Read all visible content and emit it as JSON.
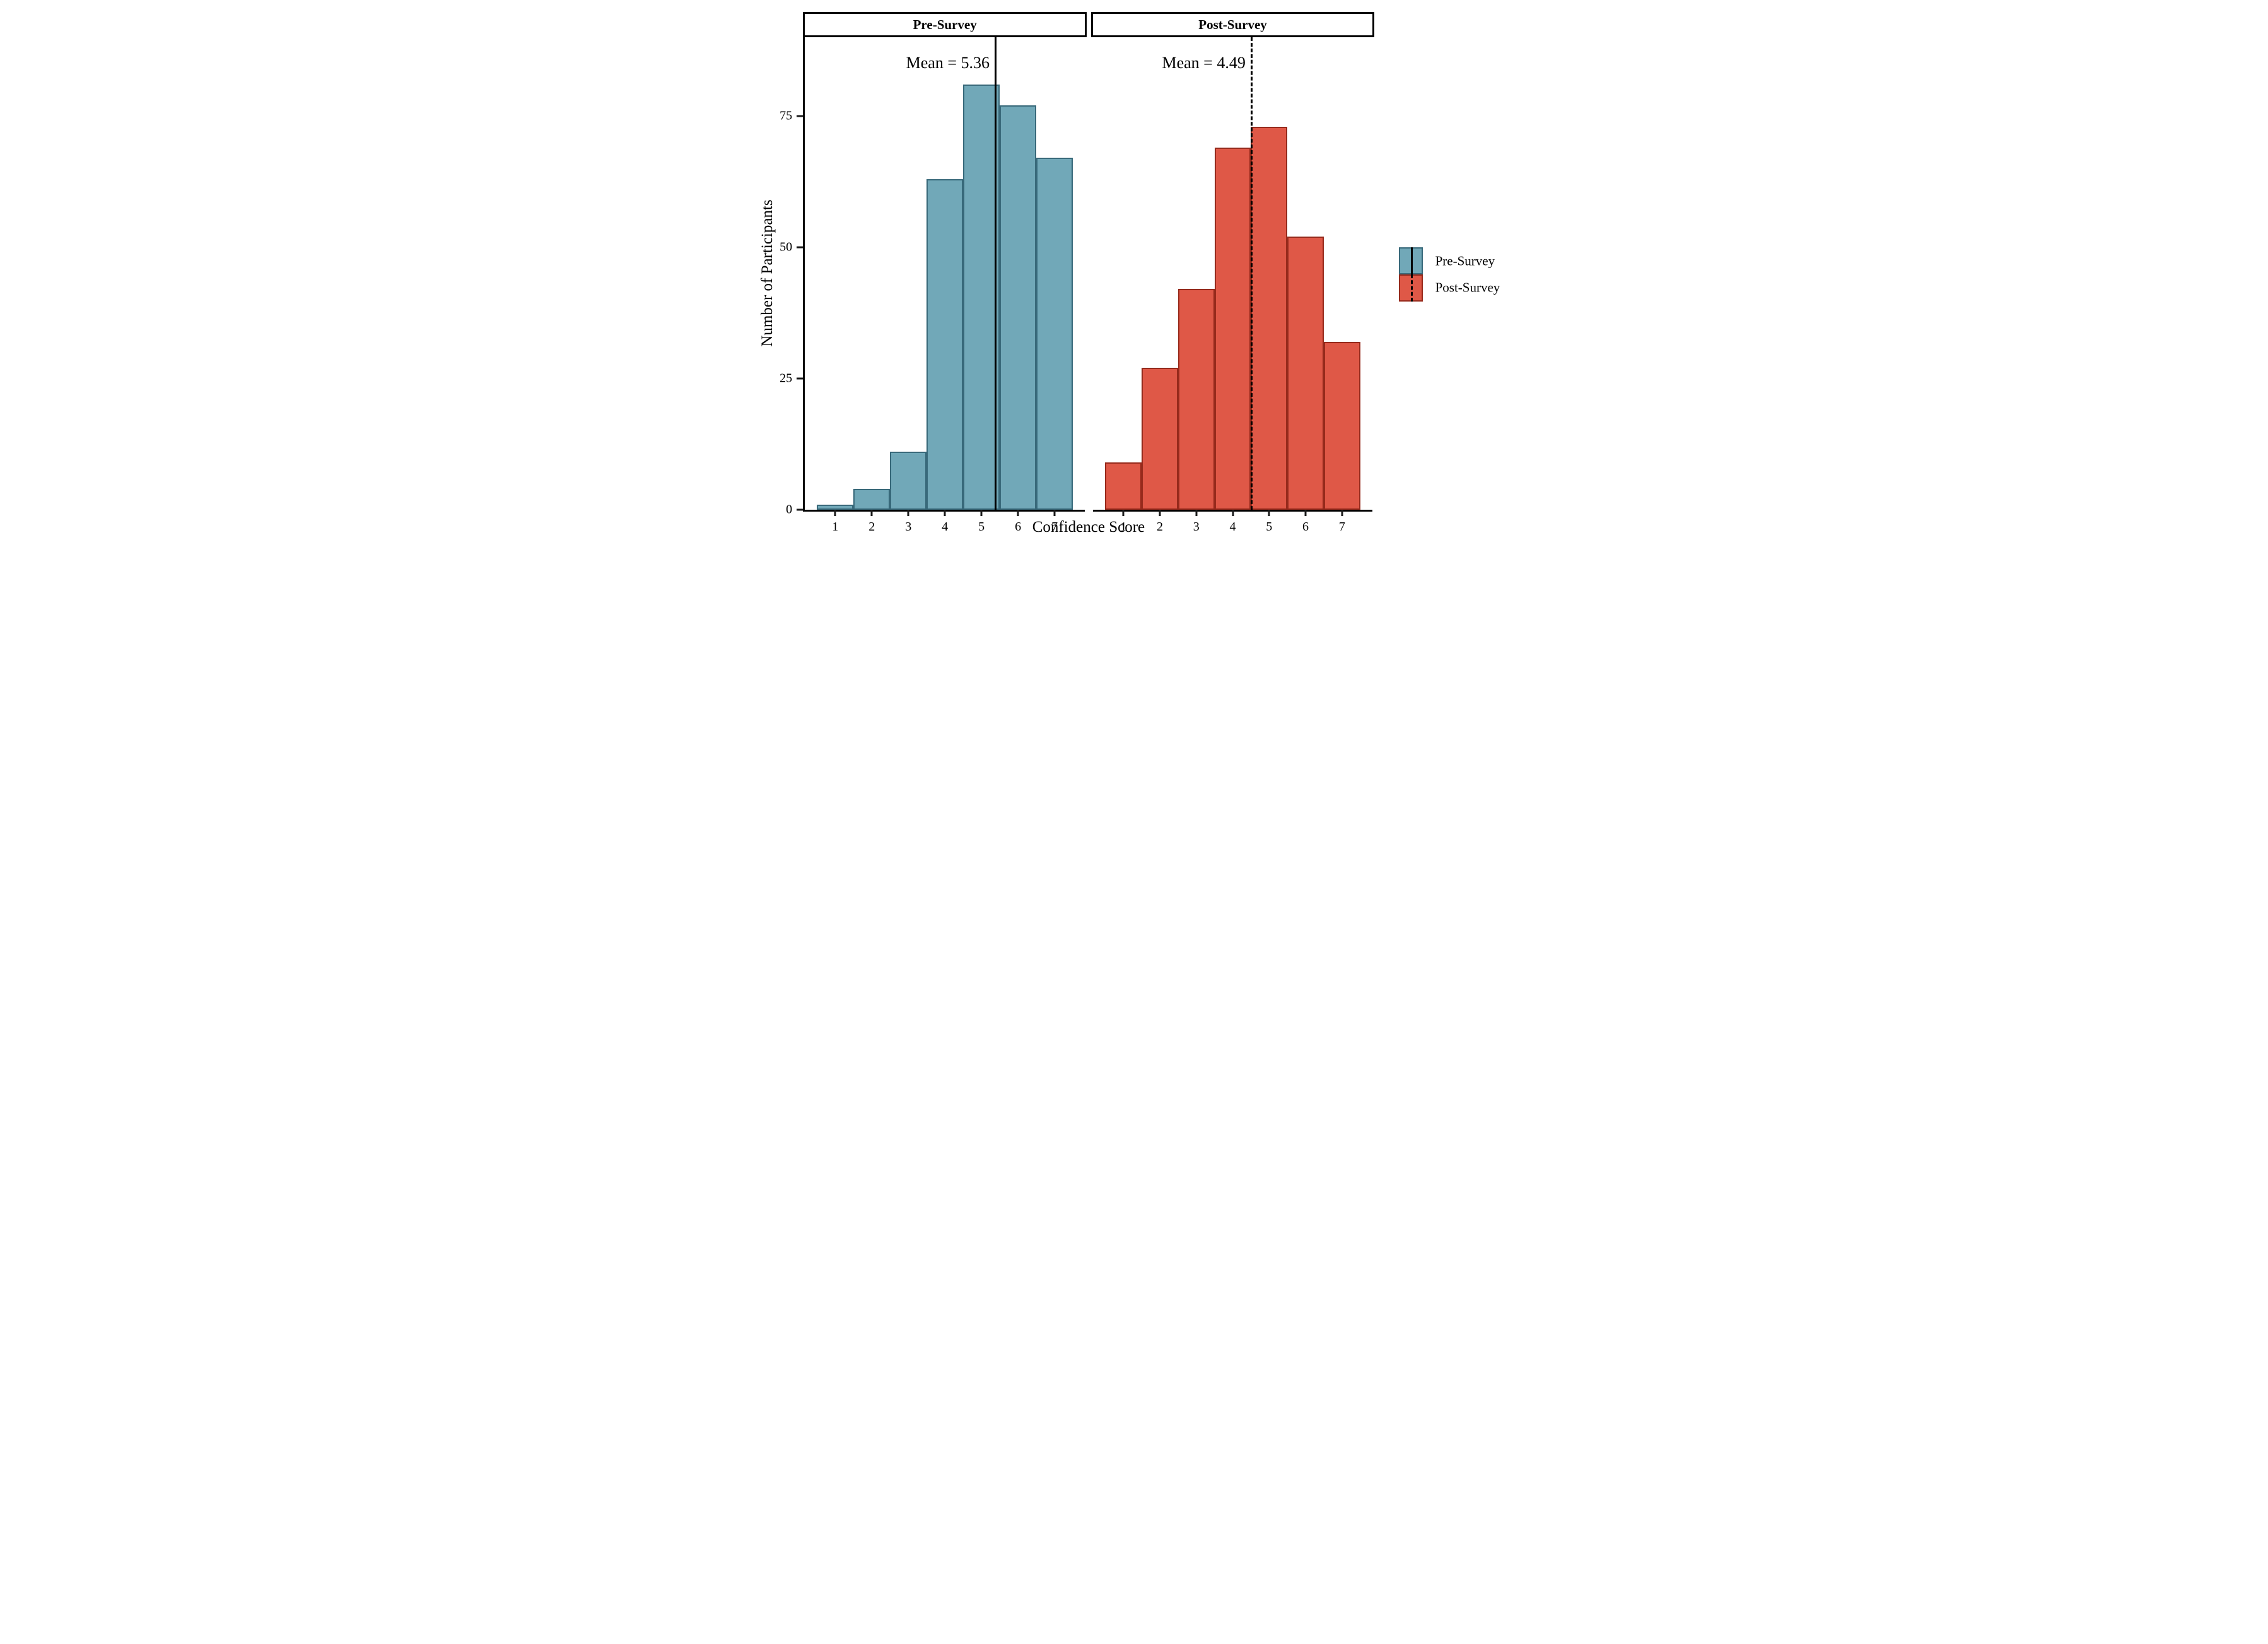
{
  "chart_data": {
    "type": "bar",
    "subtype": "faceted_histogram",
    "categories": [
      1,
      2,
      3,
      4,
      5,
      6,
      7
    ],
    "xlabel": "Confidence Score",
    "ylabel": "Number of Participants",
    "xlim": [
      0.17,
      7.83
    ],
    "ylim": [
      0,
      90
    ],
    "yticks": [
      0,
      25,
      50,
      75
    ],
    "xticks": [
      1,
      2,
      3,
      4,
      5,
      6,
      7
    ],
    "grid": false,
    "legend_position": "right",
    "series": [
      {
        "name": "Pre-Survey",
        "facet_label": "Pre-Survey",
        "values": [
          1,
          4,
          11,
          63,
          81,
          77,
          67
        ],
        "mean": 5.36,
        "mean_annotation": "Mean = 5.36",
        "mean_line_style": "solid",
        "fill": "#71A8B8",
        "stroke": "#38697A"
      },
      {
        "name": "Post-Survey",
        "facet_label": "Post-Survey",
        "values": [
          9,
          27,
          42,
          69,
          73,
          52,
          32
        ],
        "mean": 4.49,
        "mean_annotation": "Mean = 4.49",
        "mean_line_style": "dashed",
        "fill": "#DF5847",
        "stroke": "#962A1C"
      }
    ],
    "legend": [
      {
        "label": "Pre-Survey",
        "fill": "#71A8B8",
        "stroke": "#38697A",
        "line_style": "solid"
      },
      {
        "label": "Post-Survey",
        "fill": "#DF5847",
        "stroke": "#962A1C",
        "line_style": "dashed"
      }
    ]
  },
  "colors": {
    "background": "#ffffff",
    "axis": "#000000",
    "text": "#000000"
  }
}
